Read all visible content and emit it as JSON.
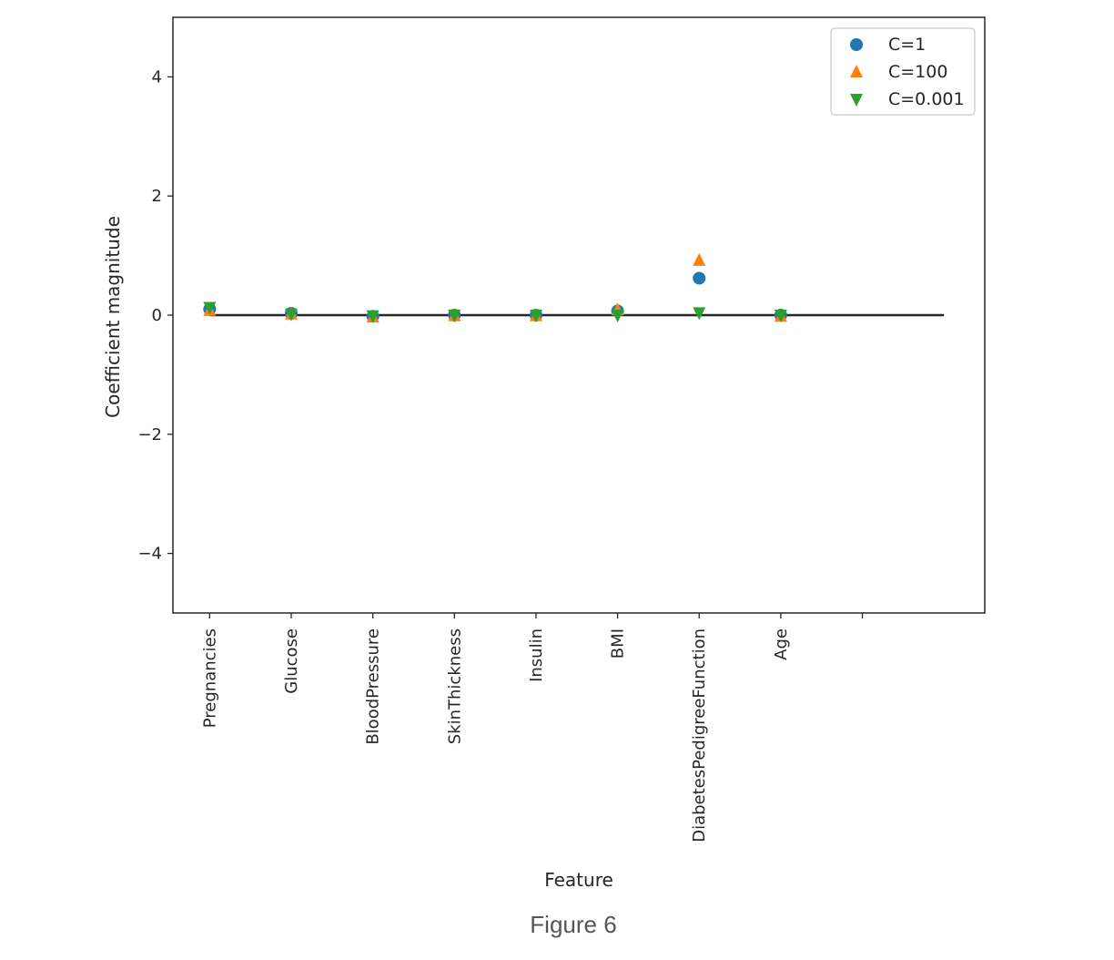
{
  "caption": "Figure 6",
  "chart_data": {
    "type": "scatter",
    "categories": [
      "Pregnancies",
      "Glucose",
      "BloodPressure",
      "SkinThickness",
      "Insulin",
      "BMI",
      "DiabetesPedigreeFunction",
      "Age"
    ],
    "xlabel": "Feature",
    "ylabel": "Coefficient magnitude",
    "ylim": [
      -5,
      5
    ],
    "xlim": [
      -0.45,
      9.5
    ],
    "yticks": [
      -4,
      -2,
      0,
      2,
      4
    ],
    "ytick_labels": [
      "−4",
      "−2",
      "0",
      "2",
      "4"
    ],
    "extra_xtick": 8,
    "hline": {
      "y": 0,
      "x_from": 0,
      "x_to": 9,
      "color": "#262626"
    },
    "legend": {
      "position": "top-right"
    },
    "grid": false,
    "series": [
      {
        "name": "C=1",
        "marker": "circle",
        "color": "#1f77b4",
        "values": [
          0.1,
          0.03,
          -0.02,
          0.0,
          0.0,
          0.07,
          0.62,
          0.0
        ]
      },
      {
        "name": "C=100",
        "marker": "triangle-up",
        "color": "#ff7f0e",
        "values": [
          0.08,
          0.02,
          -0.03,
          -0.01,
          -0.01,
          0.09,
          0.92,
          -0.02
        ]
      },
      {
        "name": "C=0.001",
        "marker": "triangle-down",
        "color": "#2ca02c",
        "values": [
          0.13,
          0.02,
          -0.01,
          0.0,
          0.0,
          0.0,
          0.04,
          0.0
        ]
      }
    ]
  }
}
